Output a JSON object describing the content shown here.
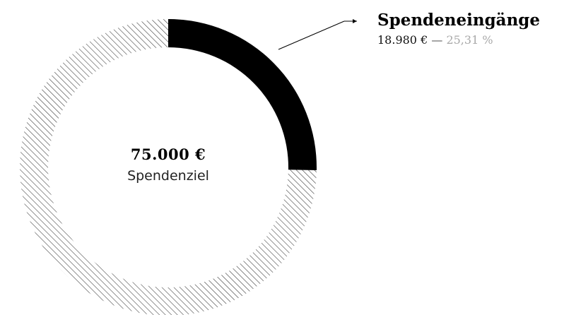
{
  "chart_data": {
    "type": "pie",
    "variant": "donut",
    "center": {
      "value": "75.000 €",
      "label": "Spendenziel"
    },
    "total": 75000,
    "series": [
      {
        "name": "Spendeneingänge",
        "value": 18980,
        "value_label": "18.980 €",
        "percent": 25.31,
        "percent_label": "25,31 %",
        "fill": "#000000"
      }
    ],
    "remainder_style": "hatched",
    "legend_position": "top-right"
  },
  "legend": {
    "separator": "—"
  },
  "colors": {
    "accent": "#000000",
    "muted_percent": "#a8a8a8",
    "hatch": "#333333"
  }
}
